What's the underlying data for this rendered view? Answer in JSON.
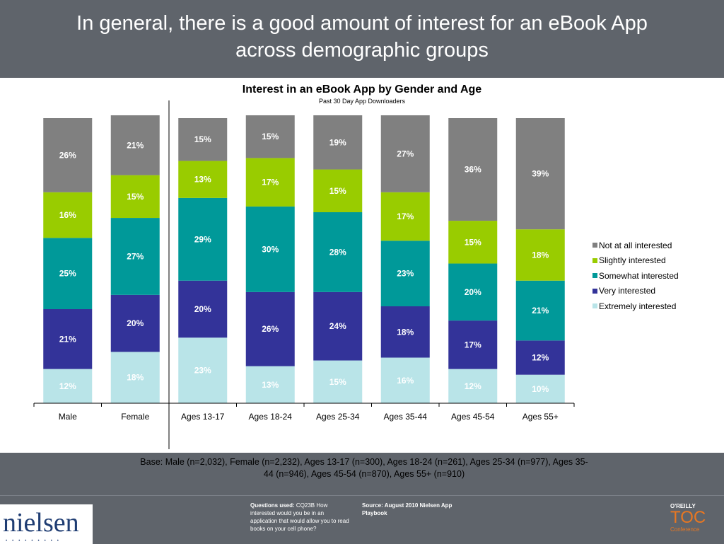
{
  "slide": {
    "title_line1": "In general, there is a good amount of interest for an eBook App",
    "title_line2": "across demographic groups"
  },
  "chart_data": {
    "type": "bar",
    "stacked": true,
    "title": "Interest in an eBook App by Gender and Age",
    "subtitle": "Past 30 Day App Downloaders",
    "categories": [
      "Male",
      "Female",
      "Ages 13-17",
      "Ages 18-24",
      "Ages 25-34",
      "Ages 35-44",
      "Ages 45-54",
      "Ages 55+"
    ],
    "series": [
      {
        "name": "Extremely interested",
        "color": "#b9e4e8",
        "values": [
          12,
          18,
          23,
          13,
          15,
          16,
          12,
          10
        ]
      },
      {
        "name": "Very interested",
        "color": "#333399",
        "values": [
          21,
          20,
          20,
          26,
          24,
          18,
          17,
          12
        ]
      },
      {
        "name": "Somewhat interested",
        "color": "#009999",
        "values": [
          25,
          27,
          29,
          30,
          28,
          23,
          20,
          21
        ]
      },
      {
        "name": "Slightly interested",
        "color": "#99cc00",
        "values": [
          16,
          15,
          13,
          17,
          15,
          17,
          15,
          18
        ]
      },
      {
        "name": "Not at all interested",
        "color": "#808080",
        "values": [
          26,
          21,
          15,
          15,
          19,
          27,
          36,
          39
        ]
      }
    ],
    "legend_order": [
      "Not at all interested",
      "Slightly interested",
      "Somewhat interested",
      "Very interested",
      "Extremely interested"
    ],
    "legend_position": "right",
    "ylim": [
      0,
      100
    ],
    "grid": false,
    "divider_after_category": "Female"
  },
  "notes": {
    "base_line1": "Base: Male (n=2,032), Female (n=2,232), Ages 13-17 (n=300), Ages 18-24 (n=261), Ages 25-34 (n=977), Ages 35-",
    "base_line2": "44 (n=946), Ages 45-54 (n=870), Ages 55+ (n=910)"
  },
  "footer": {
    "logo": "nielsen",
    "logo_dots": "•••••••••",
    "questions_label": "Questions used:",
    "questions_text": " CQ23B How interested would you be in an application that would allow you to read books on your cell phone?",
    "source_text": "Source:  August 2010 Nielsen App Playbook",
    "toc_brand": "O'REILLY",
    "toc_main": "TOC",
    "toc_sub": "Conference"
  }
}
